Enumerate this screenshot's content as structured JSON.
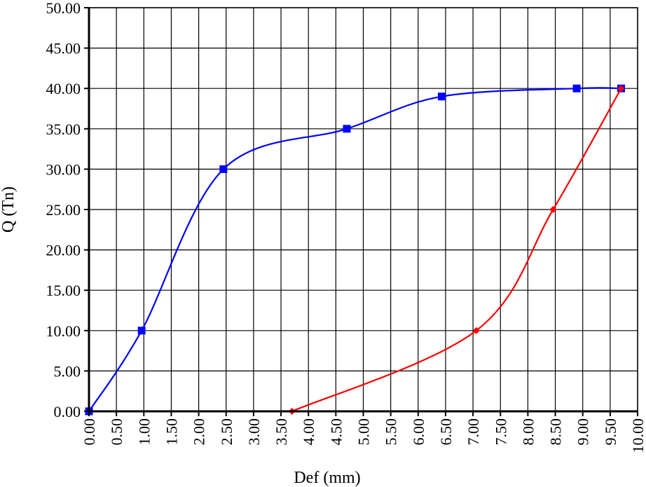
{
  "chart_data": {
    "type": "line",
    "xlabel": "Def (mm)",
    "ylabel": "Q (Tn)",
    "xlim": [
      0,
      10
    ],
    "ylim": [
      0,
      50
    ],
    "x_ticks": [
      "0.00",
      "0.50",
      "1.00",
      "1.50",
      "2.00",
      "2.50",
      "3.00",
      "3.50",
      "4.00",
      "4.50",
      "5.00",
      "5.50",
      "6.00",
      "6.50",
      "7.00",
      "7.50",
      "8.00",
      "8.50",
      "9.00",
      "9.50",
      "10.00"
    ],
    "y_ticks": [
      "0.00",
      "5.00",
      "10.00",
      "15.00",
      "20.00",
      "25.00",
      "30.00",
      "35.00",
      "40.00",
      "45.00",
      "50.00"
    ],
    "grid": true,
    "series": [
      {
        "color": "#0000ff",
        "marker": "square",
        "smooth": true,
        "points": [
          {
            "x": 0.0,
            "y": 0
          },
          {
            "x": 0.96,
            "y": 10
          },
          {
            "x": 2.45,
            "y": 30
          },
          {
            "x": 4.7,
            "y": 35
          },
          {
            "x": 6.43,
            "y": 39
          },
          {
            "x": 8.89,
            "y": 40
          },
          {
            "x": 9.7,
            "y": 40
          }
        ]
      },
      {
        "color": "#ff0000",
        "marker": "diamond",
        "smooth": true,
        "points": [
          {
            "x": 9.7,
            "y": 40
          },
          {
            "x": 8.46,
            "y": 25
          },
          {
            "x": 7.06,
            "y": 10
          },
          {
            "x": 3.7,
            "y": 0
          }
        ]
      }
    ]
  }
}
